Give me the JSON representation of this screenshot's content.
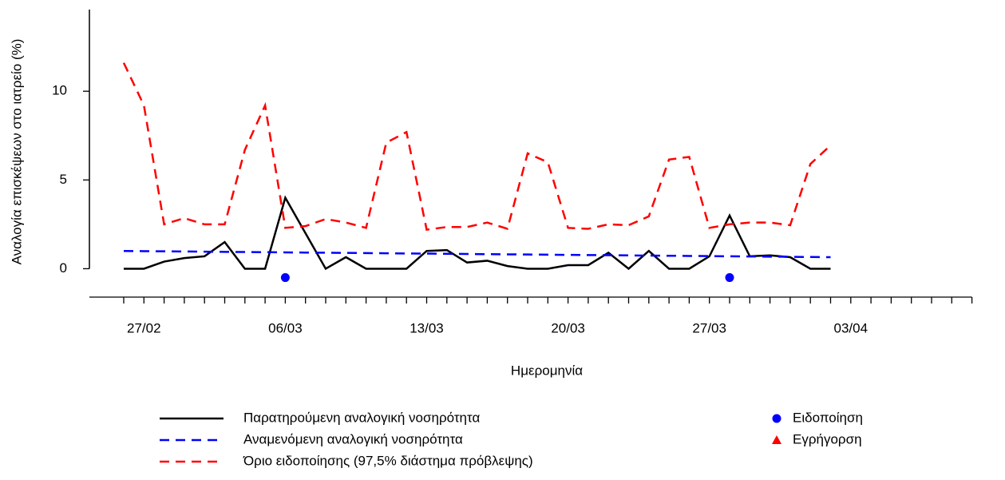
{
  "chart_data": {
    "type": "line",
    "y_label": "Αναλογία επισκέψεων στο ιατρείο (%)",
    "x_label": "Ημερομηνία",
    "categories": [
      null,
      "27/02",
      null,
      null,
      null,
      null,
      null,
      null,
      "06/03",
      null,
      null,
      null,
      null,
      null,
      null,
      "13/03",
      null,
      null,
      null,
      null,
      null,
      null,
      "20/03",
      null,
      null,
      null,
      null,
      null,
      null,
      "27/03",
      null,
      null,
      null,
      null,
      null,
      null,
      "03/04",
      null,
      null,
      null,
      null,
      null,
      null
    ],
    "ylim": [
      -1.6,
      14.6
    ],
    "yticks": [
      0,
      5,
      10
    ],
    "series": [
      {
        "name": "Παρατηρούμενη αναλογική νοσηρότητα",
        "color": "#000000",
        "dash": false,
        "marker": "none",
        "values": [
          0,
          0,
          0.4,
          0.6,
          0.7,
          1.5,
          0,
          0,
          4.0,
          2.0,
          0,
          0.65,
          0,
          0,
          0,
          1.0,
          1.05,
          0.35,
          0.45,
          0.15,
          0,
          0,
          0.2,
          0.2,
          0.9,
          0,
          1.0,
          0,
          0,
          0.7,
          3.0,
          0.7,
          0.75,
          0.65,
          0,
          0,
          null,
          null,
          null,
          null,
          null,
          null,
          null
        ]
      },
      {
        "name": "Αναμενόμενη αναλογική νοσηρότητα",
        "color": "#0000ff",
        "dash": true,
        "marker": "none",
        "values": [
          1.0,
          0.99,
          0.98,
          0.97,
          0.96,
          0.95,
          0.94,
          0.93,
          0.92,
          0.91,
          0.9,
          0.89,
          0.88,
          0.87,
          0.86,
          0.85,
          0.84,
          0.83,
          0.82,
          0.81,
          0.8,
          0.79,
          0.78,
          0.77,
          0.76,
          0.75,
          0.74,
          0.73,
          0.72,
          0.71,
          0.7,
          0.69,
          0.68,
          0.67,
          0.66,
          0.65,
          null,
          null,
          null,
          null,
          null,
          null,
          null
        ]
      },
      {
        "name": "Όριο ειδοποίησης (97,5% διάστημα πρόβλεψης)",
        "color": "#ff0000",
        "dash": true,
        "marker": "none",
        "values": [
          11.6,
          9.2,
          2.5,
          2.85,
          2.5,
          2.5,
          6.7,
          9.2,
          2.3,
          2.4,
          2.8,
          2.6,
          2.3,
          7.1,
          7.7,
          2.2,
          2.35,
          2.35,
          2.6,
          2.25,
          6.5,
          6.0,
          2.3,
          2.25,
          2.5,
          2.45,
          2.95,
          6.15,
          6.3,
          2.3,
          2.5,
          2.6,
          2.6,
          2.45,
          5.9,
          6.95,
          null,
          null,
          null,
          null,
          null,
          null,
          null
        ]
      },
      {
        "name": "Ειδοποίηση",
        "color": "#0000ff",
        "dash": false,
        "marker": "circle",
        "values": [
          null,
          null,
          null,
          null,
          null,
          null,
          null,
          null,
          -0.5,
          null,
          null,
          null,
          null,
          null,
          null,
          null,
          null,
          null,
          null,
          null,
          null,
          null,
          null,
          null,
          null,
          null,
          null,
          null,
          null,
          null,
          -0.5,
          null,
          null,
          null,
          null,
          null,
          null,
          null,
          null,
          null,
          null,
          null,
          null
        ]
      },
      {
        "name": "Εγρήγορση",
        "color": "#ff0000",
        "dash": false,
        "marker": "triangle",
        "values": [
          null,
          null,
          null,
          null,
          null,
          null,
          null,
          null,
          null,
          null,
          null,
          null,
          null,
          null,
          null,
          null,
          null,
          null,
          null,
          null,
          null,
          null,
          null,
          null,
          null,
          null,
          null,
          null,
          null,
          null,
          null,
          null,
          null,
          null,
          null,
          null,
          null,
          null,
          null,
          null,
          null,
          null,
          null
        ]
      }
    ]
  }
}
